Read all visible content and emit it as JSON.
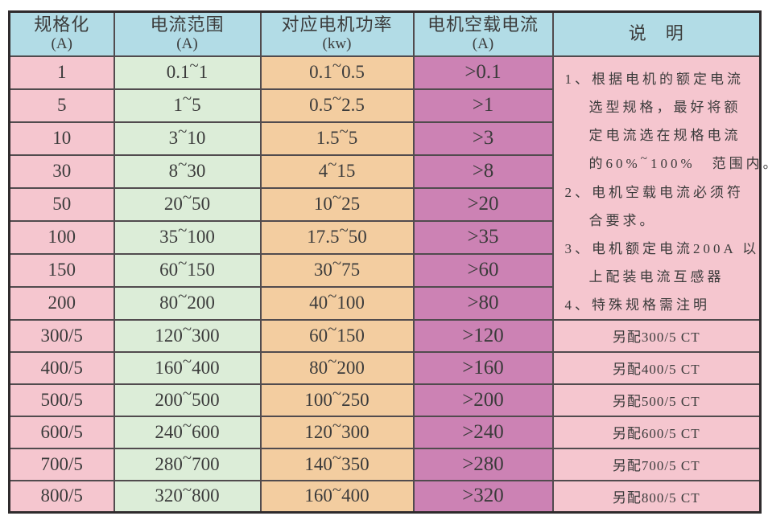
{
  "table": {
    "columns": [
      {
        "title": "规格化",
        "unit": "(A)"
      },
      {
        "title": "电流范围",
        "unit": "(A)"
      },
      {
        "title": "对应电机功率",
        "unit": "(kw)"
      },
      {
        "title": "电机空载电流",
        "unit": "(A)"
      },
      {
        "title": "说　明",
        "unit": ""
      }
    ],
    "rows": [
      {
        "spec": "1",
        "current_range": "0.1~1",
        "motor_power": "0.1~0.5",
        "no_load_current": ">0.1",
        "note": ""
      },
      {
        "spec": "5",
        "current_range": "1~5",
        "motor_power": "0.5~2.5",
        "no_load_current": ">1",
        "note": ""
      },
      {
        "spec": "10",
        "current_range": "3~10",
        "motor_power": "1.5~5",
        "no_load_current": ">3",
        "note": ""
      },
      {
        "spec": "30",
        "current_range": "8~30",
        "motor_power": "4~15",
        "no_load_current": ">8",
        "note": ""
      },
      {
        "spec": "50",
        "current_range": "20~50",
        "motor_power": "10~25",
        "no_load_current": ">20",
        "note": ""
      },
      {
        "spec": "100",
        "current_range": "35~100",
        "motor_power": "17.5~50",
        "no_load_current": ">35",
        "note": ""
      },
      {
        "spec": "150",
        "current_range": "60~150",
        "motor_power": "30~75",
        "no_load_current": ">60",
        "note": ""
      },
      {
        "spec": "200",
        "current_range": "80~200",
        "motor_power": "40~100",
        "no_load_current": ">80",
        "note": ""
      },
      {
        "spec": "300/5",
        "current_range": "120~300",
        "motor_power": "60~150",
        "no_load_current": ">120",
        "note": "另配300/5 CT"
      },
      {
        "spec": "400/5",
        "current_range": "160~400",
        "motor_power": "80~200",
        "no_load_current": ">160",
        "note": "另配400/5 CT"
      },
      {
        "spec": "500/5",
        "current_range": "200~500",
        "motor_power": "100~250",
        "no_load_current": ">200",
        "note": "另配500/5 CT"
      },
      {
        "spec": "600/5",
        "current_range": "240~600",
        "motor_power": "120~300",
        "no_load_current": ">240",
        "note": "另配600/5 CT"
      },
      {
        "spec": "700/5",
        "current_range": "280~700",
        "motor_power": "140~350",
        "no_load_current": ">280",
        "note": "另配700/5 CT"
      },
      {
        "spec": "800/5",
        "current_range": "320~800",
        "motor_power": "160~400",
        "no_load_current": ">320",
        "note": "另配800/5 CT"
      }
    ],
    "notes_span_rows": 8,
    "notes": [
      {
        "lines": [
          "1、根据电机的额定电流",
          "选型规格，最好将额",
          "定电流选在规格电流",
          "的60%~100%　范围内。"
        ]
      },
      {
        "lines": [
          "2、电机空载电流必须符",
          "合要求。"
        ]
      },
      {
        "lines": [
          "3、电机额定电流200A 以",
          "上配装电流互感器"
        ]
      },
      {
        "lines": [
          "4、特殊规格需注明"
        ]
      }
    ],
    "colors": {
      "header_bg": "#b2dce6",
      "spec_bg": "#f5c6cf",
      "range_bg": "#dcedd8",
      "power_bg": "#f3cda0",
      "no_load_bg": "#cc82b4",
      "note_bg": "#f5c6cf",
      "border": "#514b4e",
      "outer_border": "#2f2b2d",
      "text": "#3b3b3b"
    }
  }
}
